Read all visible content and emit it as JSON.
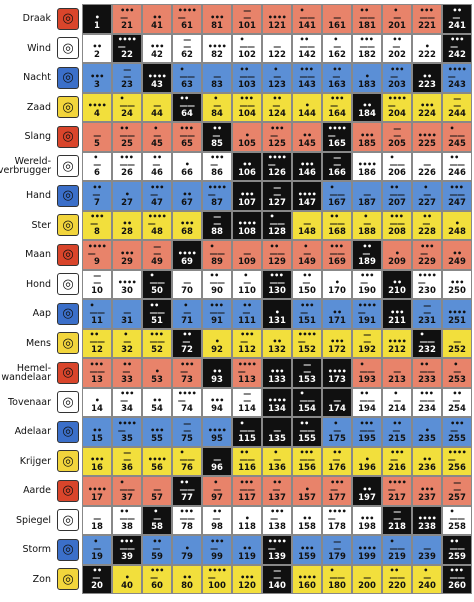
{
  "signs": [
    {
      "name": "Draak",
      "color": "#d9452b",
      "glyph": "dragon-glyph-icon"
    },
    {
      "name": "Wind",
      "color": "#ffffff",
      "glyph": "wind-glyph-icon"
    },
    {
      "name": "Nacht",
      "color": "#3b6fc9",
      "glyph": "night-glyph-icon"
    },
    {
      "name": "Zaad",
      "color": "#f2d53c",
      "glyph": "seed-glyph-icon"
    },
    {
      "name": "Slang",
      "color": "#d9452b",
      "glyph": "serpent-glyph-icon"
    },
    {
      "name": "Wereld-overbrugger",
      "color": "#ffffff",
      "glyph": "worldbridger-glyph-icon"
    },
    {
      "name": "Hand",
      "color": "#3b6fc9",
      "glyph": "hand-glyph-icon"
    },
    {
      "name": "Ster",
      "color": "#f2d53c",
      "glyph": "star-glyph-icon"
    },
    {
      "name": "Maan",
      "color": "#d9452b",
      "glyph": "moon-glyph-icon"
    },
    {
      "name": "Hond",
      "color": "#ffffff",
      "glyph": "dog-glyph-icon"
    },
    {
      "name": "Aap",
      "color": "#3b6fc9",
      "glyph": "monkey-glyph-icon"
    },
    {
      "name": "Mens",
      "color": "#f2d53c",
      "glyph": "human-glyph-icon"
    },
    {
      "name": "Hemel-wandelaar",
      "color": "#d9452b",
      "glyph": "skywalker-glyph-icon"
    },
    {
      "name": "Tovenaar",
      "color": "#ffffff",
      "glyph": "wizard-glyph-icon"
    },
    {
      "name": "Adelaar",
      "color": "#3b6fc9",
      "glyph": "eagle-glyph-icon"
    },
    {
      "name": "Krijger",
      "color": "#f2d53c",
      "glyph": "warrior-glyph-icon"
    },
    {
      "name": "Aarde",
      "color": "#d9452b",
      "glyph": "earth-glyph-icon"
    },
    {
      "name": "Spiegel",
      "color": "#ffffff",
      "glyph": "mirror-glyph-icon"
    },
    {
      "name": "Storm",
      "color": "#3b6fc9",
      "glyph": "storm-glyph-icon"
    },
    {
      "name": "Zon",
      "color": "#f2d53c",
      "glyph": "sun-glyph-icon"
    }
  ],
  "row_colors": [
    "r",
    "w",
    "b",
    "y"
  ],
  "numerals": [
    "•",
    "••",
    "•••",
    "••••",
    "—",
    "•\n—",
    "••\n—",
    "•••\n—",
    "••••\n—",
    "—\n—",
    "•\n——",
    "••\n——",
    "•••\n——"
  ],
  "dark_cells": [
    1,
    20,
    22,
    39,
    43,
    50,
    51,
    58,
    64,
    69,
    72,
    77,
    85,
    88,
    93,
    96,
    106,
    107,
    108,
    115,
    126,
    127,
    128,
    130,
    131,
    133,
    134,
    135,
    139,
    140,
    146,
    147,
    153,
    154,
    155,
    165,
    166,
    173,
    174,
    184,
    189,
    197,
    210,
    211,
    218,
    223,
    232,
    238,
    241,
    242,
    259,
    260
  ],
  "columns": 13,
  "rows": 20,
  "colors": {
    "red": "#e8836a",
    "white": "#ffffff",
    "blue": "#5b8fd6",
    "yellow": "#f2df3c",
    "black": "#101010"
  }
}
